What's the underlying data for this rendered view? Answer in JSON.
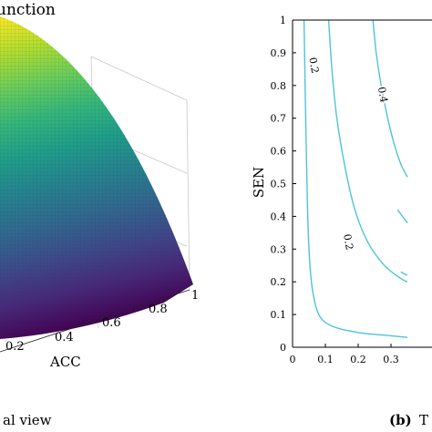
{
  "left_panel": {
    "title_fragment": "unction",
    "xlabel": "ACC",
    "x_ticks": [
      "0.2",
      "0.4",
      "0.6",
      "0.8",
      "1"
    ],
    "caption_fragment": "al view",
    "surface_colors": [
      "#fde725",
      "#b5de2b",
      "#6ece58",
      "#35b779",
      "#1f9e89",
      "#26828e",
      "#31688e",
      "#3e4989",
      "#482878",
      "#440154"
    ]
  },
  "right_panel": {
    "caption_label": "(b)",
    "caption_fragment": "T",
    "chart_data": {
      "type": "contour",
      "xlabel": "",
      "ylabel": "SEN",
      "xlim": [
        0,
        0.35
      ],
      "ylim": [
        0,
        1
      ],
      "x_ticks": [
        "0",
        "0.1",
        "0.2",
        "0.3"
      ],
      "y_ticks": [
        "0",
        "0.1",
        "0.2",
        "0.3",
        "0.4",
        "0.5",
        "0.6",
        "0.7",
        "0.8",
        "0.9",
        "1"
      ],
      "line_color": "#4fc3d9",
      "contours": [
        {
          "level": "0.2",
          "points": [
            [
              0.035,
              1.0
            ],
            [
              0.04,
              0.7
            ],
            [
              0.045,
              0.45
            ],
            [
              0.05,
              0.3
            ],
            [
              0.06,
              0.18
            ],
            [
              0.08,
              0.1
            ],
            [
              0.12,
              0.065
            ],
            [
              0.2,
              0.045
            ],
            [
              0.3,
              0.035
            ],
            [
              0.35,
              0.03
            ]
          ]
        },
        {
          "level": "0.2",
          "points": [
            [
              0.11,
              1.0
            ],
            [
              0.12,
              0.85
            ],
            [
              0.135,
              0.7
            ],
            [
              0.16,
              0.55
            ],
            [
              0.19,
              0.42
            ],
            [
              0.23,
              0.32
            ],
            [
              0.28,
              0.25
            ],
            [
              0.33,
              0.21
            ],
            [
              0.35,
              0.2
            ]
          ]
        },
        {
          "level": "0.4",
          "points": [
            [
              0.245,
              1.0
            ],
            [
              0.255,
              0.9
            ],
            [
              0.27,
              0.8
            ],
            [
              0.29,
              0.7
            ],
            [
              0.31,
              0.62
            ],
            [
              0.33,
              0.56
            ],
            [
              0.35,
              0.52
            ]
          ]
        },
        {
          "level": "",
          "points": [
            [
              0.32,
              0.42
            ],
            [
              0.35,
              0.38
            ]
          ]
        },
        {
          "level": "",
          "points": [
            [
              0.33,
              0.23
            ],
            [
              0.35,
              0.22
            ]
          ]
        }
      ],
      "contour_labels": [
        {
          "text": "0.2",
          "x": 0.055,
          "y": 0.86
        },
        {
          "text": "0.4",
          "x": 0.265,
          "y": 0.77
        },
        {
          "text": "0.2",
          "x": 0.16,
          "y": 0.32
        }
      ]
    }
  }
}
